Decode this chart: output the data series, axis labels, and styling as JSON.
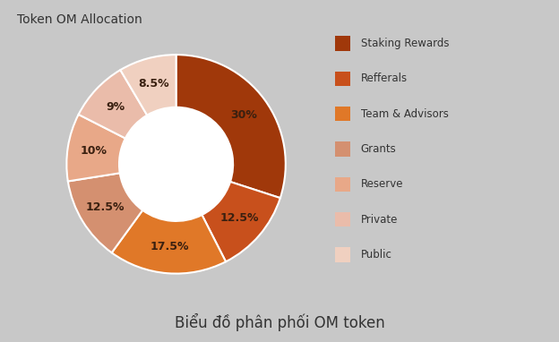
{
  "title": "Token OM Allocation",
  "subtitle": "Biểu đồ phân phối OM token",
  "labels": [
    "Staking Rewards",
    "Refferals",
    "Team & Advisors",
    "Grants",
    "Reserve",
    "Private",
    "Public"
  ],
  "values": [
    30,
    12.5,
    17.5,
    12.5,
    10,
    9,
    8.5
  ],
  "colors": [
    "#A0380A",
    "#C8501C",
    "#E07828",
    "#D49070",
    "#E8A888",
    "#EABCAA",
    "#F0D0C0"
  ],
  "pct_labels": [
    "30%",
    "12.5%",
    "17.5%",
    "12.5%",
    "10%",
    "9%",
    "8.5%"
  ],
  "bg_color": "#C8C8C8",
  "fig_bg_color": "#C8C8C8",
  "white_bar": "#FFFFFF",
  "title_fontsize": 10,
  "subtitle_fontsize": 12,
  "legend_fontsize": 8.5,
  "pct_fontsize": 9,
  "pct_color": "#3A2010"
}
